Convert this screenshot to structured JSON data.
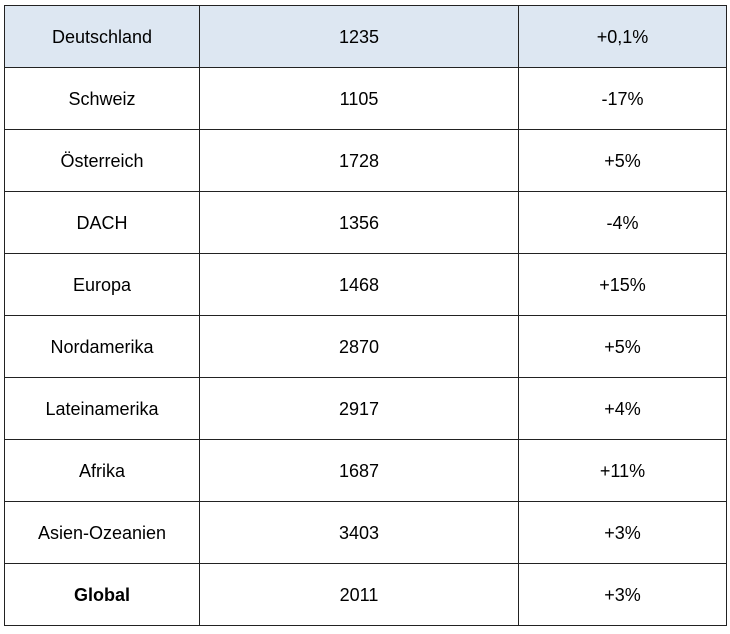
{
  "colors": {
    "header_row_background": "#dde7f2",
    "border": "#222222",
    "text": "#000000"
  },
  "table": {
    "rows": [
      {
        "region": "Deutschland",
        "value": "1235",
        "change": "+0,1%"
      },
      {
        "region": "Schweiz",
        "value": "1105",
        "change": "-17%"
      },
      {
        "region": "Österreich",
        "value": "1728",
        "change": "+5%"
      },
      {
        "region": "DACH",
        "value": "1356",
        "change": "-4%"
      },
      {
        "region": "Europa",
        "value": "1468",
        "change": "+15%"
      },
      {
        "region": "Nordamerika",
        "value": "2870",
        "change": "+5%"
      },
      {
        "region": "Lateinamerika",
        "value": "2917",
        "change": "+4%"
      },
      {
        "region": "Afrika",
        "value": "1687",
        "change": "+11%"
      },
      {
        "region": "Asien-Ozeanien",
        "value": "3403",
        "change": "+3%"
      },
      {
        "region": "Global",
        "value": "2011",
        "change": "+3%"
      }
    ]
  }
}
